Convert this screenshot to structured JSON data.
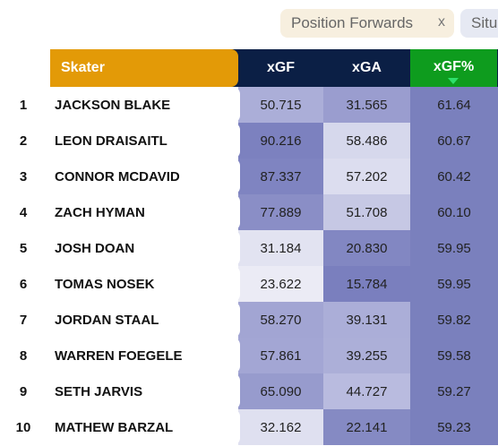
{
  "filters": {
    "position_label": "Position Forwards",
    "position_remove": "x",
    "situation_label": "Situ"
  },
  "table": {
    "headers": {
      "skater": "Skater",
      "xgf": "xGF",
      "xga": "xGA",
      "xgf_pct": "xGF%"
    },
    "sort": {
      "column": "xGF%",
      "direction": "descending"
    },
    "rows": [
      {
        "rank": "1",
        "name": "JACKSON BLAKE",
        "xgf": "50.715",
        "xga": "31.565",
        "xgf_pct": "61.64",
        "xgf_color": "#abaed8",
        "xga_color": "#9a9dcf"
      },
      {
        "rank": "2",
        "name": "LEON DRAISAITL",
        "xgf": "90.216",
        "xga": "58.486",
        "xgf_pct": "60.67",
        "xgf_color": "#7c81bf",
        "xga_color": "#d6d8ec"
      },
      {
        "rank": "3",
        "name": "CONNOR MCDAVID",
        "xgf": "87.337",
        "xga": "57.202",
        "xgf_pct": "60.42",
        "xgf_color": "#7f84c1",
        "xga_color": "#dcddef"
      },
      {
        "rank": "4",
        "name": "ZACH HYMAN",
        "xgf": "77.889",
        "xga": "51.708",
        "xgf_pct": "60.10",
        "xgf_color": "#8a8ec6",
        "xga_color": "#c6c8e4"
      },
      {
        "rank": "5",
        "name": "JOSH DOAN",
        "xgf": "31.184",
        "xga": "20.830",
        "xgf_pct": "59.95",
        "xgf_color": "#e2e3f1",
        "xga_color": "#8287c2"
      },
      {
        "rank": "6",
        "name": "TOMAS NOSEK",
        "xgf": "23.622",
        "xga": "15.784",
        "xgf_pct": "59.95",
        "xgf_color": "#ebebf5",
        "xga_color": "#7a7fbe"
      },
      {
        "rank": "7",
        "name": "JORDAN STAAL",
        "xgf": "58.270",
        "xga": "39.131",
        "xgf_pct": "59.82",
        "xgf_color": "#a2a5d3",
        "xga_color": "#abaed8"
      },
      {
        "rank": "8",
        "name": "WARREN FOEGELE",
        "xgf": "57.861",
        "xga": "39.255",
        "xgf_pct": "59.58",
        "xgf_color": "#a3a6d4",
        "xga_color": "#acafd8"
      },
      {
        "rank": "9",
        "name": "SETH JARVIS",
        "xgf": "65.090",
        "xga": "44.727",
        "xgf_pct": "59.27",
        "xgf_color": "#979bcd",
        "xga_color": "#b9bbdf"
      },
      {
        "rank": "10",
        "name": "MATHEW BARZAL",
        "xgf": "32.162",
        "xga": "22.141",
        "xgf_pct": "59.23",
        "xgf_color": "#dfe0f0",
        "xga_color": "#858ac3"
      }
    ]
  }
}
